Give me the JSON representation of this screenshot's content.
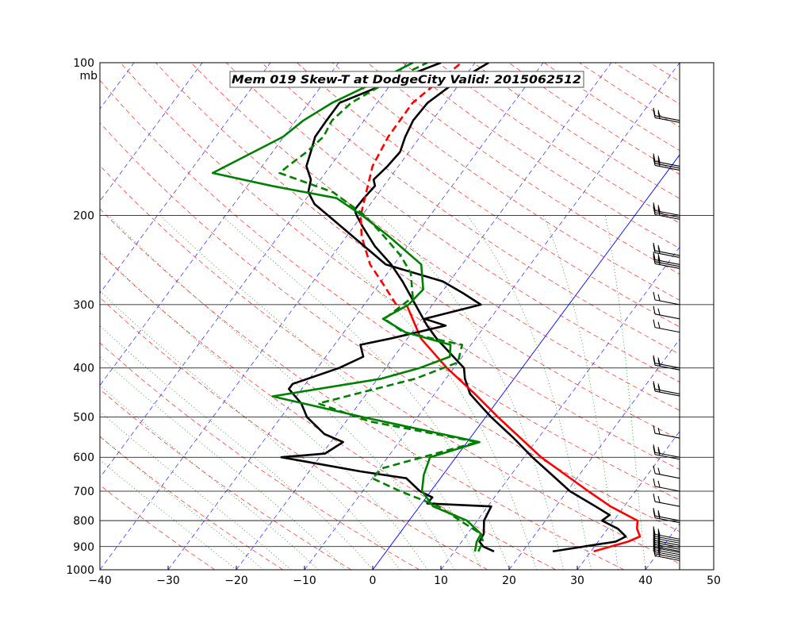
{
  "chart_data": {
    "type": "line",
    "chart_kind": "skew-t log-p diagram",
    "title": "Mem 019  Skew-T at DodgeCity    Valid: 2015062512",
    "pressure_unit": "mb",
    "temperature_unit": "C",
    "xlim": [
      -40,
      50
    ],
    "plim_mb": [
      1000,
      100
    ],
    "x_ticks": [
      "−40",
      "−30",
      "−20",
      "−10",
      "0",
      "10",
      "20",
      "30",
      "40",
      "50"
    ],
    "pressure_ticks": [
      "100",
      "200",
      "300",
      "400",
      "500",
      "600",
      "700",
      "800",
      "900",
      "1000"
    ],
    "legend": "none",
    "series": [
      {
        "role": "temperature",
        "color": "#000000",
        "style": "solid",
        "points": [
          {
            "p": 920,
            "t": 24.4
          },
          {
            "p": 880,
            "t": 32.6
          },
          {
            "p": 860,
            "t": 33.5
          },
          {
            "p": 830,
            "t": 31.5
          },
          {
            "p": 800,
            "t": 28.3
          },
          {
            "p": 780,
            "t": 28.8
          },
          {
            "p": 750,
            "t": 25.8
          },
          {
            "p": 700,
            "t": 20.4
          },
          {
            "p": 650,
            "t": 16.0
          },
          {
            "p": 600,
            "t": 11.2
          },
          {
            "p": 550,
            "t": 6.4
          },
          {
            "p": 500,
            "t": 0.8
          },
          {
            "p": 470,
            "t": -2.5
          },
          {
            "p": 450,
            "t": -4.8
          },
          {
            "p": 420,
            "t": -7.2
          },
          {
            "p": 400,
            "t": -8.5
          },
          {
            "p": 350,
            "t": -15.7
          },
          {
            "p": 330,
            "t": -18.5
          },
          {
            "p": 300,
            "t": -22.5
          },
          {
            "p": 270,
            "t": -26.9
          },
          {
            "p": 250,
            "t": -30.4
          },
          {
            "p": 230,
            "t": -34.8
          },
          {
            "p": 210,
            "t": -38.8
          },
          {
            "p": 200,
            "t": -40.8
          },
          {
            "p": 195,
            "t": -41.7
          },
          {
            "p": 185,
            "t": -41.6
          },
          {
            "p": 175,
            "t": -41.3
          },
          {
            "p": 170,
            "t": -42.2
          },
          {
            "p": 160,
            "t": -41.6
          },
          {
            "p": 150,
            "t": -41.3
          },
          {
            "p": 140,
            "t": -42.2
          },
          {
            "p": 130,
            "t": -42.8
          },
          {
            "p": 120,
            "t": -42.6
          },
          {
            "p": 110,
            "t": -40.9
          },
          {
            "p": 100,
            "t": -38.0
          }
        ]
      },
      {
        "role": "temperature",
        "color": "#ff0000",
        "style": "solid",
        "points": [
          {
            "p": 920,
            "t": 30.4
          },
          {
            "p": 880,
            "t": 34.4
          },
          {
            "p": 860,
            "t": 35.6
          },
          {
            "p": 830,
            "t": 34.3
          },
          {
            "p": 800,
            "t": 33.5
          },
          {
            "p": 750,
            "t": 28.0
          },
          {
            "p": 700,
            "t": 23.1
          },
          {
            "p": 600,
            "t": 12.5
          },
          {
            "p": 500,
            "t": 1.8
          },
          {
            "p": 450,
            "t": -4.1
          },
          {
            "p": 400,
            "t": -11.0
          },
          {
            "p": 350,
            "t": -18.0
          },
          {
            "p": 300,
            "t": -23.8
          }
        ]
      },
      {
        "role": "temperature",
        "color": "#ff0000",
        "style": "dashed",
        "points": [
          {
            "p": 300,
            "t": -25.3
          },
          {
            "p": 270,
            "t": -30.0
          },
          {
            "p": 250,
            "t": -33.5
          },
          {
            "p": 220,
            "t": -37.8
          },
          {
            "p": 200,
            "t": -40.2
          },
          {
            "p": 180,
            "t": -41.9
          },
          {
            "p": 160,
            "t": -43.8
          },
          {
            "p": 140,
            "t": -44.7
          },
          {
            "p": 120,
            "t": -44.8
          },
          {
            "p": 100,
            "t": -42.0
          }
        ]
      },
      {
        "role": "dewpoint",
        "color": "#000000",
        "style": "solid",
        "points": [
          {
            "p": 920,
            "t": 15.8
          },
          {
            "p": 900,
            "t": 13.7
          },
          {
            "p": 880,
            "t": 12.6
          },
          {
            "p": 850,
            "t": 12.4
          },
          {
            "p": 800,
            "t": 11.0
          },
          {
            "p": 750,
            "t": 10.5
          },
          {
            "p": 740,
            "t": 0.8
          },
          {
            "p": 720,
            "t": 0.9
          },
          {
            "p": 700,
            "t": -1.6
          },
          {
            "p": 660,
            "t": -5.0
          },
          {
            "p": 640,
            "t": -12.4
          },
          {
            "p": 600,
            "t": -25.6
          },
          {
            "p": 590,
            "t": -19.6
          },
          {
            "p": 560,
            "t": -18.2
          },
          {
            "p": 540,
            "t": -21.8
          },
          {
            "p": 500,
            "t": -26.2
          },
          {
            "p": 470,
            "t": -28.5
          },
          {
            "p": 440,
            "t": -31.9
          },
          {
            "p": 430,
            "t": -31.9
          },
          {
            "p": 400,
            "t": -26.8
          },
          {
            "p": 380,
            "t": -24.5
          },
          {
            "p": 360,
            "t": -26.2
          },
          {
            "p": 350,
            "t": -22.5
          },
          {
            "p": 330,
            "t": -15.8
          },
          {
            "p": 320,
            "t": -19.6
          },
          {
            "p": 300,
            "t": -12.9
          },
          {
            "p": 285,
            "t": -16.7
          },
          {
            "p": 270,
            "t": -21.0
          },
          {
            "p": 250,
            "t": -31.2
          },
          {
            "p": 200,
            "t": -45.0
          },
          {
            "p": 190,
            "t": -48.2
          },
          {
            "p": 180,
            "t": -50.4
          },
          {
            "p": 170,
            "t": -51.4
          },
          {
            "p": 160,
            "t": -53.5
          },
          {
            "p": 150,
            "t": -54.4
          },
          {
            "p": 140,
            "t": -55.4
          },
          {
            "p": 130,
            "t": -55.5
          },
          {
            "p": 120,
            "t": -55.5
          },
          {
            "p": 110,
            "t": -50.7
          },
          {
            "p": 100,
            "t": -45.0
          }
        ]
      },
      {
        "role": "dewpoint",
        "color": "#008000",
        "style": "solid",
        "points": [
          {
            "p": 920,
            "t": 13.0
          },
          {
            "p": 880,
            "t": 12.2
          },
          {
            "p": 850,
            "t": 12.0
          },
          {
            "p": 800,
            "t": 8.5
          },
          {
            "p": 750,
            "t": 2.0
          },
          {
            "p": 700,
            "t": -1.3
          },
          {
            "p": 650,
            "t": -2.8
          },
          {
            "p": 600,
            "t": -3.8
          },
          {
            "p": 560,
            "t": 1.8
          },
          {
            "p": 500,
            "t": -18.0
          },
          {
            "p": 455,
            "t": -33.5
          },
          {
            "p": 420,
            "t": -19.5
          },
          {
            "p": 400,
            "t": -15.0
          },
          {
            "p": 380,
            "t": -11.8
          },
          {
            "p": 360,
            "t": -13.0
          },
          {
            "p": 340,
            "t": -21.0
          },
          {
            "p": 320,
            "t": -25.7
          },
          {
            "p": 300,
            "t": -23.5
          },
          {
            "p": 280,
            "t": -23.0
          },
          {
            "p": 250,
            "t": -26.0
          },
          {
            "p": 220,
            "t": -33.8
          },
          {
            "p": 200,
            "t": -40.0
          },
          {
            "p": 185,
            "t": -45.6
          },
          {
            "p": 175,
            "t": -56.4
          },
          {
            "p": 165,
            "t": -66.5
          },
          {
            "p": 140,
            "t": -60.1
          },
          {
            "p": 130,
            "t": -58.9
          },
          {
            "p": 120,
            "t": -56.6
          },
          {
            "p": 110,
            "t": -52.8
          },
          {
            "p": 100,
            "t": -49.1
          }
        ]
      },
      {
        "role": "dewpoint",
        "color": "#008000",
        "style": "dashed",
        "points": [
          {
            "p": 920,
            "t": 13.5
          },
          {
            "p": 880,
            "t": 13.1
          },
          {
            "p": 850,
            "t": 12.0
          },
          {
            "p": 800,
            "t": 7.5
          },
          {
            "p": 750,
            "t": 2.8
          },
          {
            "p": 700,
            "t": -4.5
          },
          {
            "p": 660,
            "t": -10.0
          },
          {
            "p": 630,
            "t": -9.5
          },
          {
            "p": 560,
            "t": 1.5
          },
          {
            "p": 510,
            "t": -16.5
          },
          {
            "p": 470,
            "t": -26.0
          },
          {
            "p": 420,
            "t": -14.5
          },
          {
            "p": 390,
            "t": -10.0
          },
          {
            "p": 360,
            "t": -11.3
          },
          {
            "p": 340,
            "t": -21.3
          },
          {
            "p": 320,
            "t": -25.5
          },
          {
            "p": 290,
            "t": -23.7
          },
          {
            "p": 260,
            "t": -26.6
          },
          {
            "p": 240,
            "t": -30.0
          },
          {
            "p": 220,
            "t": -34.5
          },
          {
            "p": 200,
            "t": -39.6
          },
          {
            "p": 180,
            "t": -46.8
          },
          {
            "p": 165,
            "t": -56.7
          },
          {
            "p": 160,
            "t": -56.2
          },
          {
            "p": 150,
            "t": -55.0
          },
          {
            "p": 140,
            "t": -54.2
          },
          {
            "p": 130,
            "t": -54.7
          },
          {
            "p": 120,
            "t": -53.8
          },
          {
            "p": 110,
            "t": -51.0
          },
          {
            "p": 100,
            "t": -47.0
          }
        ]
      }
    ],
    "reference_lines": {
      "isotherm_dashed_color": "#0000ff",
      "isotherm_zero_color": "#0000ff",
      "dry_adiabat_color": "#ff0000",
      "moist_adiabat_color": "#008000"
    },
    "wind_barbs_column": {
      "color": "#000000",
      "barbs": [
        {
          "p": 925,
          "count": 5
        },
        {
          "p": 895,
          "count": 4
        },
        {
          "p": 870,
          "count": 3
        },
        {
          "p": 800,
          "count": 2
        },
        {
          "p": 750,
          "count": 1
        },
        {
          "p": 700,
          "count": 1
        },
        {
          "p": 660,
          "count": 1
        },
        {
          "p": 600,
          "count": 2
        },
        {
          "p": 550,
          "count": 1
        },
        {
          "p": 450,
          "count": 2
        },
        {
          "p": 400,
          "count": 2
        },
        {
          "p": 340,
          "count": 1
        },
        {
          "p": 320,
          "count": 1
        },
        {
          "p": 300,
          "count": 1
        },
        {
          "p": 250,
          "count": 3
        },
        {
          "p": 240,
          "count": 2
        },
        {
          "p": 200,
          "count": 3
        },
        {
          "p": 160,
          "count": 3
        },
        {
          "p": 130,
          "count": 2
        }
      ]
    }
  }
}
